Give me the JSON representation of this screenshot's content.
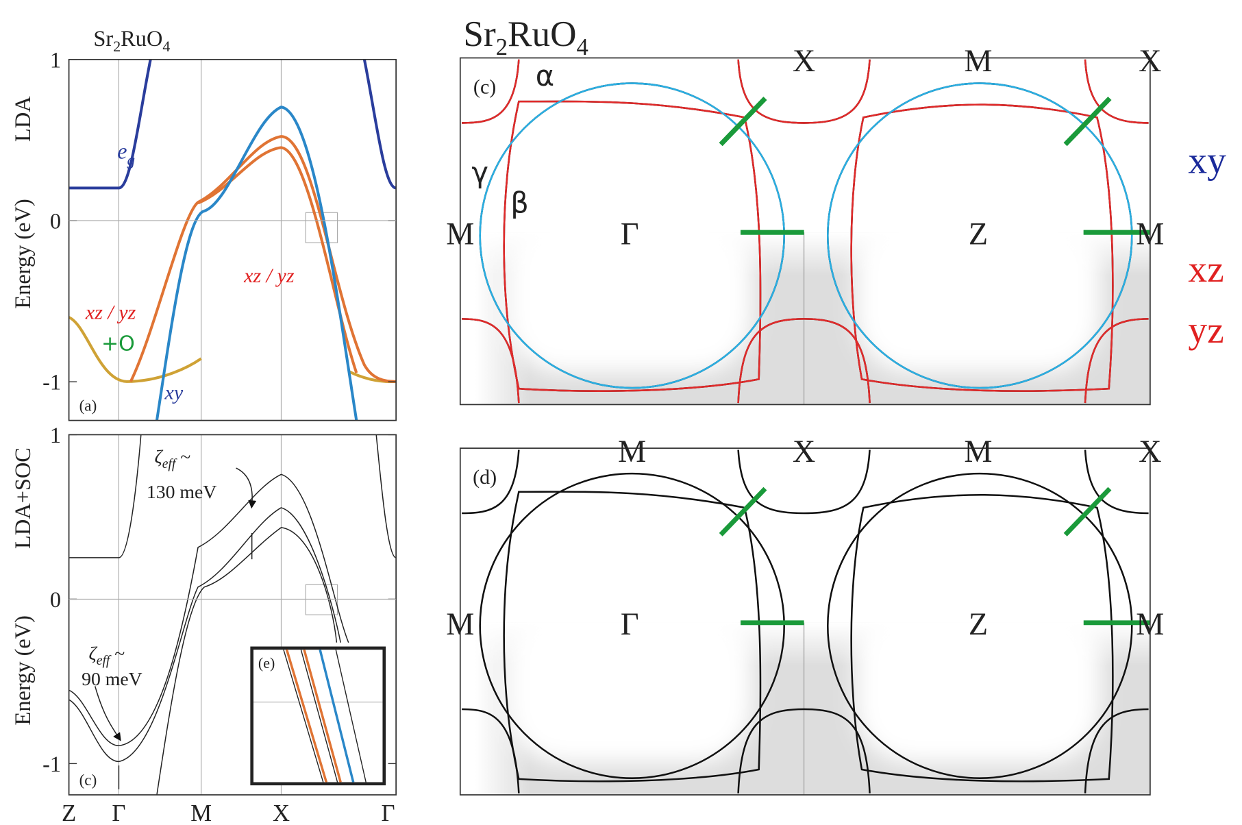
{
  "left": {
    "formula": [
      "Sr",
      "2",
      "RuO",
      "4"
    ],
    "k_path": [
      "Z",
      "Γ",
      "M",
      "X",
      "Γ"
    ],
    "panel_a": {
      "label": "(a)",
      "method": "LDA",
      "ylabel": "Energy (eV)",
      "ylim": [
        -1.24,
        1
      ],
      "yticks": [
        -1,
        0,
        1
      ],
      "band_labels": {
        "eg": [
          "e",
          "g"
        ],
        "xz_yz_1": "xz / yz",
        "xz_yz_2": "xz / yz",
        "oxygen": "+O",
        "xy": "xy"
      }
    },
    "panel_b": {
      "label": "(c)",
      "method": "LDA+SOC",
      "ylabel": "Energy (eV)",
      "ylim": [
        -1.19,
        1
      ],
      "yticks": [
        -1,
        0,
        1
      ],
      "zeta_1": {
        "symbol": [
          "ζ",
          "eff",
          " ~"
        ],
        "value": "130 meV"
      },
      "zeta_2": {
        "symbol": [
          "ζ",
          "eff",
          " ~"
        ],
        "value": "90 meV"
      },
      "inset_label": "(e)"
    }
  },
  "right": {
    "formula": [
      "Sr",
      "2",
      "RuO",
      "4"
    ],
    "panel_c": {
      "label": "(c)",
      "sheets": [
        "α",
        "γ",
        "β"
      ],
      "top_points": [
        "X",
        "M",
        "X"
      ],
      "mid_points": [
        "M",
        "Γ",
        "Z",
        "M"
      ]
    },
    "panel_d": {
      "label": "(d)",
      "top_points": [
        "M",
        "X",
        "M",
        "X"
      ],
      "mid_points": [
        "M",
        "Γ",
        "Z",
        "M"
      ]
    },
    "legend": [
      "xy",
      "xz",
      "yz"
    ]
  }
}
